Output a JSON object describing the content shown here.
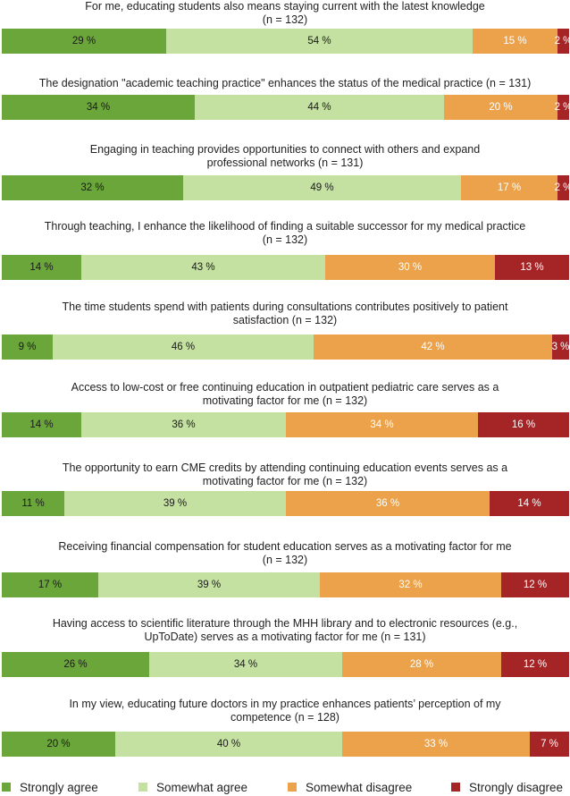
{
  "chart_data": {
    "type": "bar",
    "orientation": "horizontal",
    "stacked": true,
    "normalized_to_percent": true,
    "categories": [
      "Strongly agree",
      "Somewhat agree",
      "Somewhat disagree",
      "Strongly disagree"
    ],
    "colors": [
      "#6aa63a",
      "#c4e1a2",
      "#eba24a",
      "#a52426"
    ],
    "value_suffix": " %",
    "items": [
      {
        "title": "For me, educating students also means staying current with the latest knowledge\n(n = 132)",
        "values": [
          29,
          54,
          15,
          2
        ]
      },
      {
        "title": "The designation \"academic teaching practice\" enhances the status of the medical practice (n = 131)",
        "values": [
          34,
          44,
          20,
          2
        ]
      },
      {
        "title": "Engaging in teaching provides opportunities to connect with others and expand\nprofessional networks (n = 131)",
        "values": [
          32,
          49,
          17,
          2
        ]
      },
      {
        "title": "Through teaching, I enhance the likelihood of finding a suitable successor for my medical practice\n(n = 132)",
        "values": [
          14,
          43,
          30,
          13
        ]
      },
      {
        "title": "The time students spend with patients during consultations contributes positively to patient\nsatisfaction (n = 132)",
        "values": [
          9,
          46,
          42,
          3
        ]
      },
      {
        "title": "Access to low-cost or free continuing education in outpatient pediatric care serves as a\nmotivating factor for me (n = 132)",
        "values": [
          14,
          36,
          34,
          16
        ]
      },
      {
        "title": "The opportunity to earn CME credits by attending continuing education events serves as a\nmotivating factor for me (n = 132)",
        "values": [
          11,
          39,
          36,
          14
        ]
      },
      {
        "title": "Receiving financial compensation for student education serves as a motivating factor for me\n(n = 132)",
        "values": [
          17,
          39,
          32,
          12
        ]
      },
      {
        "title": "Having access to scientific literature through the MHH library and to electronic resources (e.g.,\nUpToDate) serves as a motivating factor for me (n = 131)",
        "values": [
          26,
          34,
          28,
          12
        ]
      },
      {
        "title": "In my view, educating future doctors in my practice enhances patients’ perception of my\ncompetence (n = 128)",
        "values": [
          20,
          40,
          33,
          7
        ]
      }
    ]
  }
}
